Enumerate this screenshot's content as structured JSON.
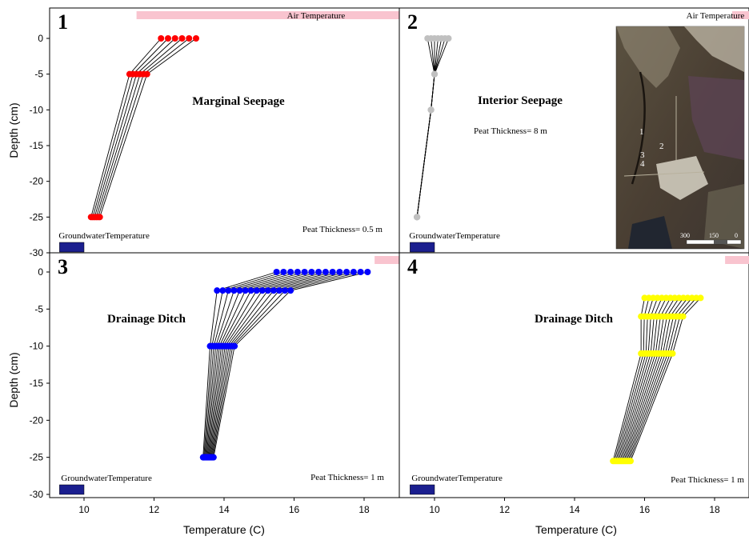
{
  "figure": {
    "y_axis_label": "Depth (cm)",
    "x_axis_label": "Temperature (C)"
  },
  "colors": {
    "air_bar": "#f9c4cf",
    "groundwater_box": "#1b1f8f",
    "panel1": "#ff0000",
    "panel2": "#c0c0c0",
    "panel3": "#0000ff",
    "panel4": "#ffff00",
    "profile_line": "#000000"
  },
  "map_inset": {
    "description_labels": [
      "1",
      "2",
      "3",
      "4"
    ],
    "scale_text": "300",
    "scale_text_2": "150",
    "scale_text_3": "0"
  },
  "chart_data": [
    {
      "panel": "1",
      "type": "line",
      "title": "Marginal Seepage",
      "note": "Peat Thickness= 0.5 m",
      "air_label": "Air Temperature",
      "groundwater_label": "GroundwaterTemperature",
      "x_range": [
        9,
        19
      ],
      "y_range": [
        -30,
        2
      ],
      "x_ticks": [],
      "y_ticks": [
        "0",
        "-5",
        "-10",
        "-15",
        "-20",
        "-25",
        "-30"
      ],
      "air_temp_range": [
        11.5,
        19
      ],
      "groundwater_temp_range": [
        9.3,
        10
      ],
      "depths": [
        0,
        -5,
        -25
      ],
      "profiles": [
        [
          12.2,
          11.3,
          10.2
        ],
        [
          12.4,
          11.4,
          10.25
        ],
        [
          12.6,
          11.5,
          10.3
        ],
        [
          12.8,
          11.6,
          10.35
        ],
        [
          13.0,
          11.7,
          10.4
        ],
        [
          13.2,
          11.8,
          10.45
        ]
      ]
    },
    {
      "panel": "2",
      "type": "line",
      "title": "Interior Seepage",
      "note": "Peat Thickness= 8 m",
      "air_label": "Air Temperature",
      "groundwater_label": "GroundwaterTemperature",
      "x_range": [
        9,
        19
      ],
      "y_range": [
        -30,
        2
      ],
      "x_ticks": [],
      "y_ticks": [],
      "air_temp_range": [
        18.5,
        19
      ],
      "groundwater_temp_range": [
        9.3,
        10
      ],
      "depths": [
        0,
        -5,
        -10,
        -25
      ],
      "profiles": [
        [
          9.8,
          10.0,
          9.9,
          9.5
        ],
        [
          9.9,
          10.0,
          9.9,
          9.5
        ],
        [
          10.0,
          10.0,
          9.9,
          9.5
        ],
        [
          10.1,
          10.0,
          9.9,
          9.5
        ],
        [
          10.2,
          10.0,
          9.9,
          9.5
        ],
        [
          10.3,
          10.0,
          9.9,
          9.5
        ],
        [
          10.4,
          10.0,
          9.9,
          9.5
        ]
      ]
    },
    {
      "panel": "3",
      "type": "line",
      "title": "Drainage Ditch",
      "note": "Peat Thickness= 1 m",
      "air_label": "",
      "groundwater_label": "GroundwaterTemperature",
      "x_range": [
        9,
        19
      ],
      "y_range": [
        -30,
        1
      ],
      "x_ticks": [
        "10",
        "12",
        "14",
        "16",
        "18"
      ],
      "y_ticks": [
        "0",
        "-5",
        "-10",
        "-15",
        "-20",
        "-25",
        "-30"
      ],
      "air_temp_range": [
        18.3,
        19
      ],
      "groundwater_temp_range": [
        9.3,
        10
      ],
      "depths": [
        0,
        -2.5,
        -10,
        -25
      ],
      "profile_ranges": {
        "d0": [
          15.5,
          18.1
        ],
        "d1": [
          13.8,
          15.9
        ],
        "d2": [
          13.6,
          14.3
        ],
        "d3": [
          13.4,
          13.7
        ]
      }
    },
    {
      "panel": "4",
      "type": "line",
      "title": "Drainage Ditch",
      "note": "Peat Thickness= 1 m",
      "air_label": "",
      "groundwater_label": "GroundwaterTemperature",
      "x_range": [
        9,
        19
      ],
      "y_range": [
        -30,
        1
      ],
      "x_ticks": [
        "10",
        "12",
        "14",
        "16",
        "18"
      ],
      "y_ticks": [],
      "air_temp_range": [
        18.3,
        19
      ],
      "groundwater_temp_range": [
        9.3,
        10
      ],
      "depths": [
        -3.5,
        -6,
        -11,
        -25.5
      ],
      "profile_ranges": {
        "d0": [
          16.0,
          17.6
        ],
        "d1": [
          15.9,
          17.1
        ],
        "d2": [
          15.9,
          16.8
        ],
        "d3": [
          15.1,
          15.6
        ]
      }
    }
  ]
}
